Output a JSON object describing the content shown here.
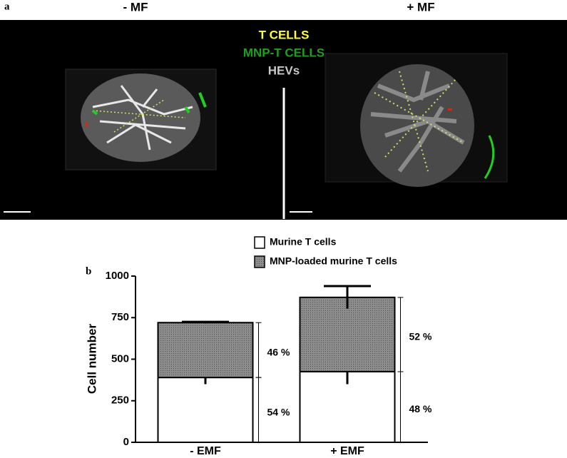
{
  "panel_a": {
    "label": "a",
    "titles": [
      "- MF",
      "+ MF"
    ],
    "legend": [
      {
        "text": "T CELLS",
        "color": "#ffff33"
      },
      {
        "text": "MNP-T CELLS",
        "color": "#1f9e1f"
      },
      {
        "text": "HEVs",
        "color": "#c8c8c8"
      }
    ]
  },
  "chart_data": {
    "type": "bar",
    "stacked": true,
    "label": "b",
    "ylabel": "Cell number",
    "categories": [
      "- EMF",
      "+ EMF"
    ],
    "series": [
      {
        "name": "Murine T cells",
        "color": "#ffffff",
        "values": [
          390,
          425
        ],
        "errors": [
          40,
          75
        ],
        "percent_labels": [
          "54 %",
          "48 %"
        ]
      },
      {
        "name": "MNP-loaded murine T cells",
        "color": "#8c8c8c",
        "values": [
          330,
          447
        ],
        "errors": [
          5,
          68
        ],
        "percent_labels": [
          "46 %",
          "52 %"
        ]
      }
    ],
    "ylim": [
      0,
      1000
    ],
    "yticks": [
      0,
      250,
      500,
      750,
      1000
    ]
  }
}
